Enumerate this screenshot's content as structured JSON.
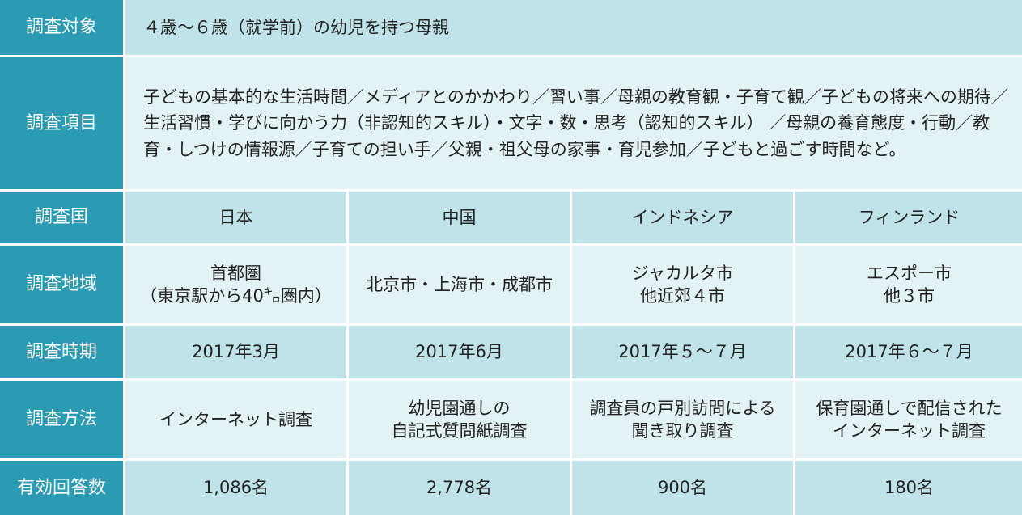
{
  "rows": {
    "target": {
      "label": "調査対象",
      "value": "４歳〜６歳（就学前）の幼児を持つ母親"
    },
    "items": {
      "label": "調査項目",
      "value": "子どもの基本的な生活時間／メディアとのかかわり／習い事／母親の教育観・子育て観／子どもの将来への期待／生活習慣・学びに向かう力（非認知的スキル）・文字・数・思考（認知的スキル） ／母親の養育態度・行動／教育・しつけの情報源／子育ての担い手／父親・祖父母の家事・育児参加／子どもと過ごす時間など。"
    },
    "country": {
      "label": "調査国",
      "values": [
        "日本",
        "中国",
        "インドネシア",
        "フィンランド"
      ]
    },
    "region": {
      "label": "調査地域",
      "values": [
        "首都圏\n（東京駅から40㌔圏内）",
        "北京市・上海市・成都市",
        "ジャカルタ市\n他近郊４市",
        "エスポー市\n他３市"
      ]
    },
    "period": {
      "label": "調査時期",
      "values": [
        "2017年3月",
        "2017年6月",
        "2017年５〜７月",
        "2017年６〜７月"
      ]
    },
    "method": {
      "label": "調査方法",
      "values": [
        "インターネット調査",
        "幼児園通しの\n自記式質問紙調査",
        "調査員の戸別訪問による\n聞き取り調査",
        "保育園通しで配信された\nインターネット調査"
      ]
    },
    "responses": {
      "label": "有効回答数",
      "values": [
        "1,086名",
        "2,778名",
        "900名",
        "180名"
      ]
    }
  },
  "colors": {
    "header": "#2a9bb3",
    "value": "#bfe3e9",
    "value_light": "#e3f3f5"
  }
}
